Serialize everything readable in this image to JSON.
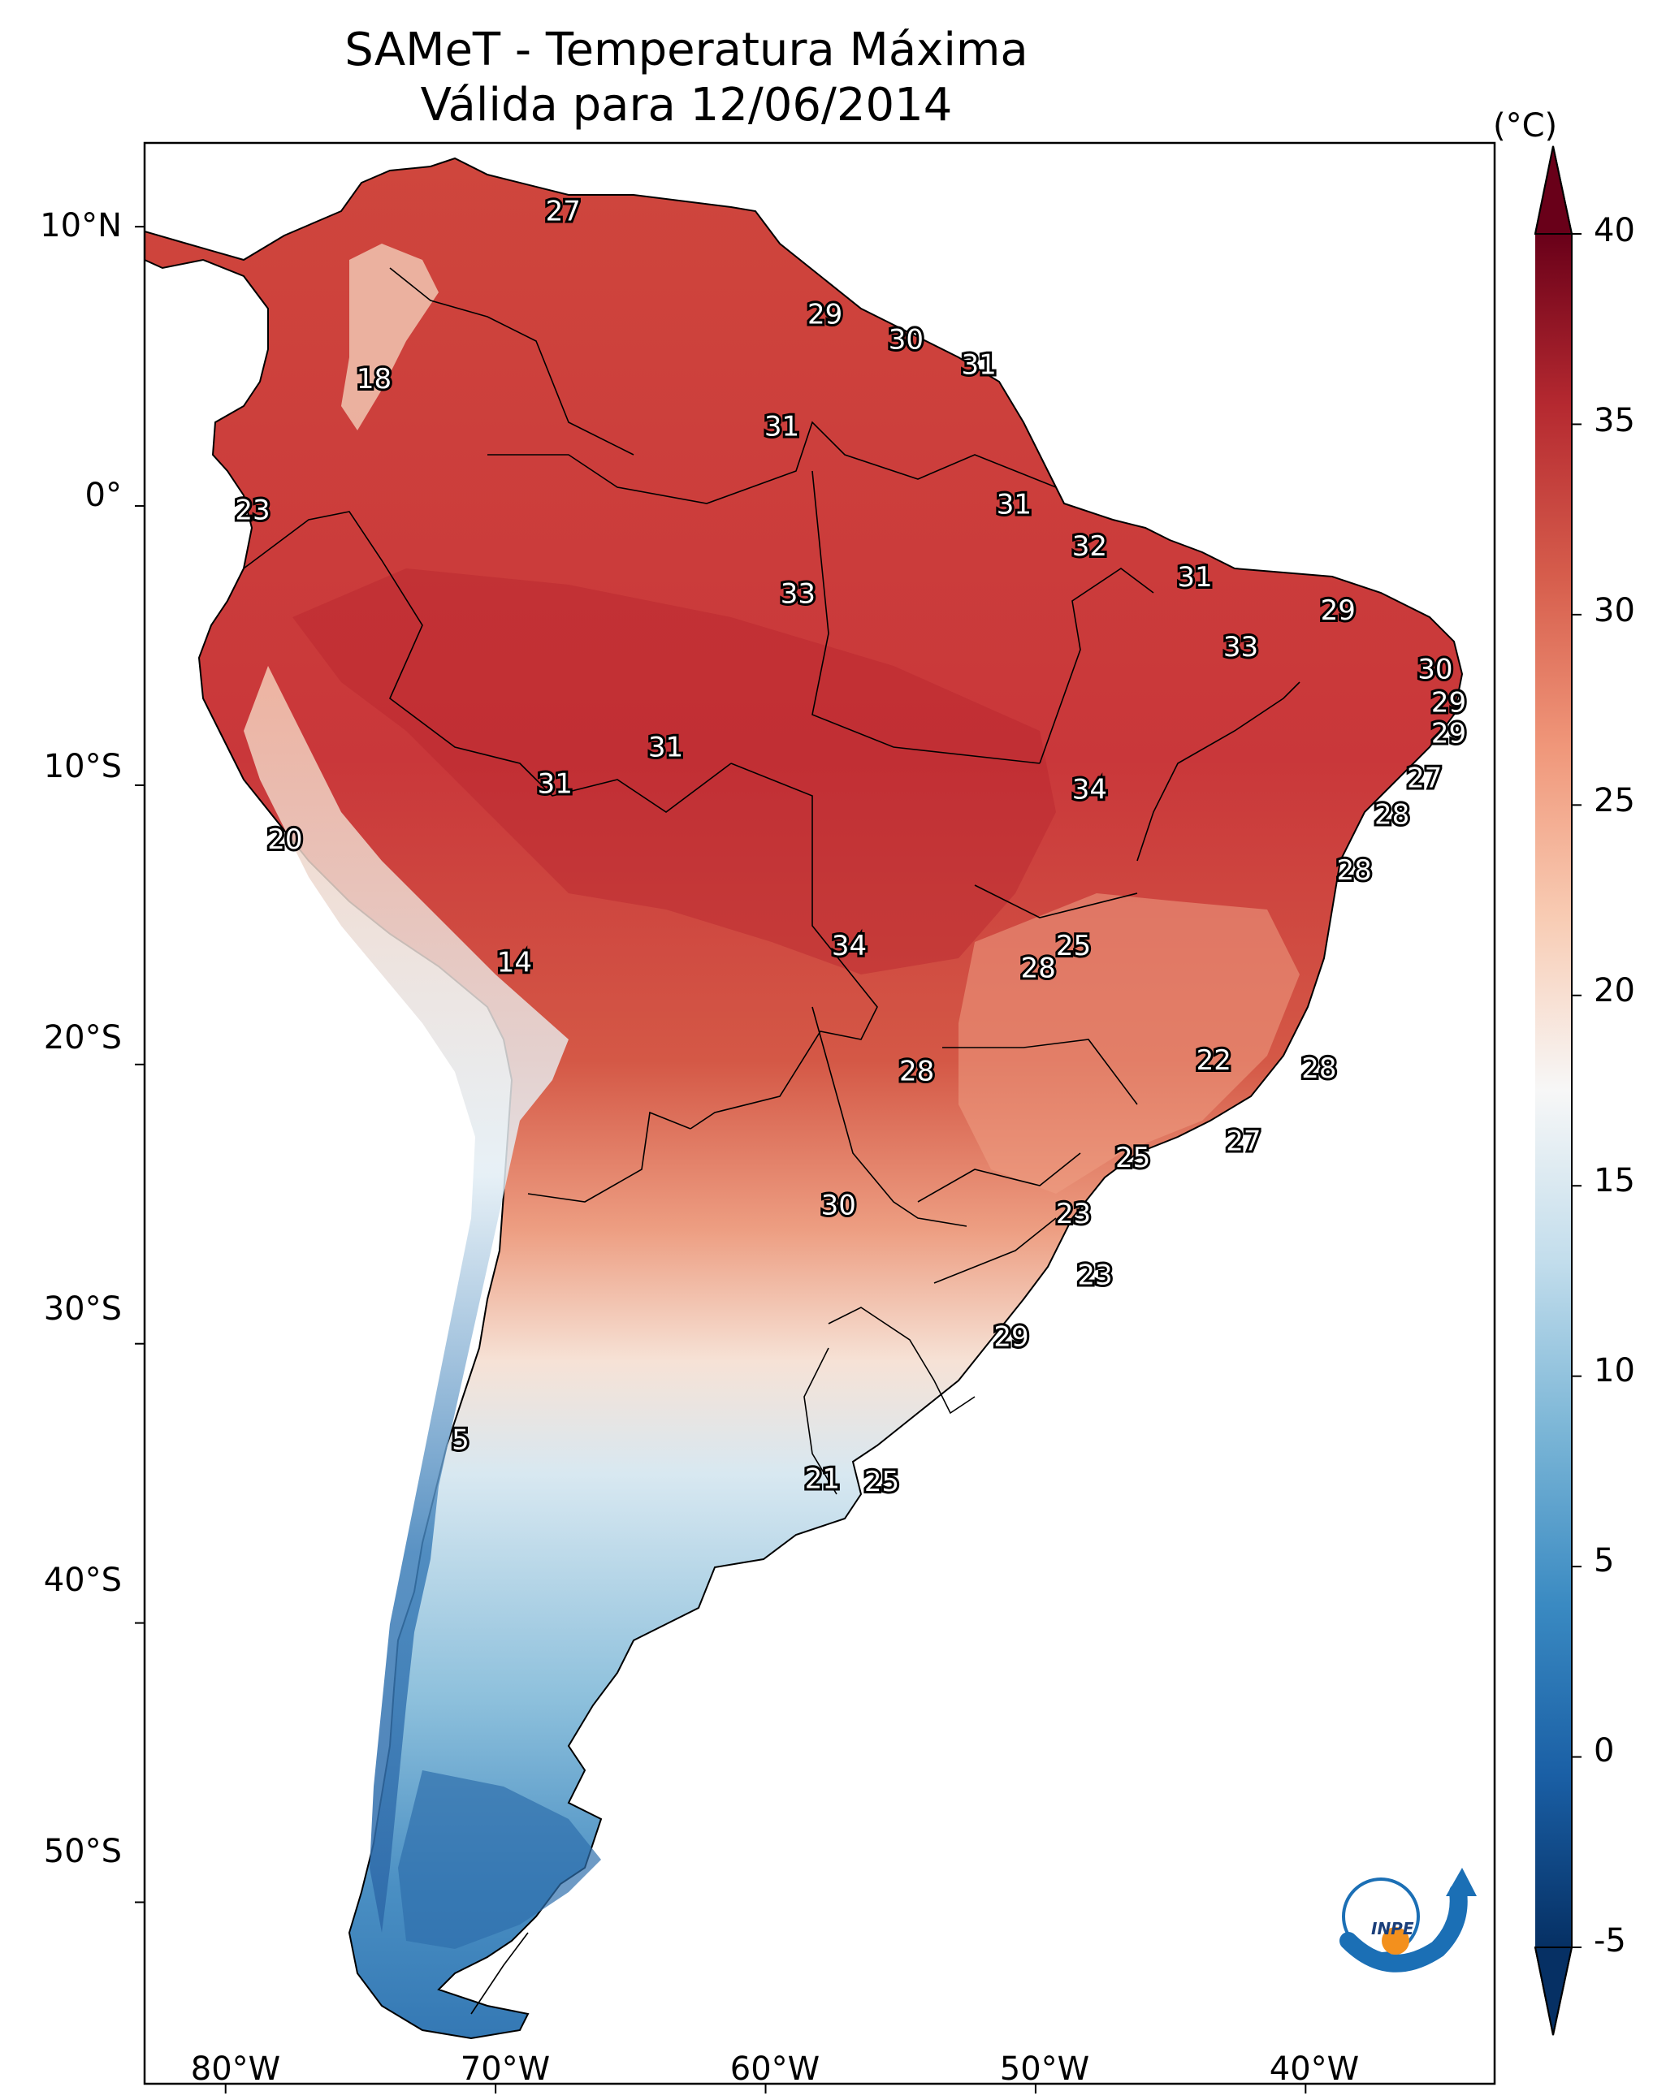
{
  "title_line1": "SAMeT - Temperatura Máxima",
  "title_line2": "Válida para 12/06/2014",
  "colorbar": {
    "unit": "(°C)",
    "ticks": [
      "40",
      "35",
      "30",
      "25",
      "20",
      "15",
      "10",
      "5",
      "0",
      "-5"
    ],
    "range": [
      -5,
      40
    ],
    "colormap": "RdBu_r"
  },
  "lat_ticks": [
    "10°N",
    "0°",
    "10°S",
    "20°S",
    "30°S",
    "40°S",
    "50°S"
  ],
  "lon_ticks": [
    "80°W",
    "70°W",
    "60°W",
    "50°W",
    "40°W"
  ],
  "map_extent": {
    "lon": [
      -83,
      -33
    ],
    "lat": [
      -56.5,
      13
    ]
  },
  "logo": {
    "text": "INPE"
  },
  "temperature_labels": [
    {
      "lon": -67.5,
      "lat": 10.5,
      "value": "27"
    },
    {
      "lon": -74.5,
      "lat": 4.5,
      "value": "18"
    },
    {
      "lon": -79.0,
      "lat": -0.2,
      "value": "23"
    },
    {
      "lon": -57.8,
      "lat": 6.8,
      "value": "29"
    },
    {
      "lon": -54.8,
      "lat": 5.9,
      "value": "30"
    },
    {
      "lon": -52.1,
      "lat": 5.0,
      "value": "31"
    },
    {
      "lon": -59.4,
      "lat": 2.8,
      "value": "31"
    },
    {
      "lon": -50.8,
      "lat": 0.0,
      "value": "31"
    },
    {
      "lon": -48.0,
      "lat": -1.5,
      "value": "32"
    },
    {
      "lon": -44.1,
      "lat": -2.6,
      "value": "31"
    },
    {
      "lon": -38.8,
      "lat": -3.8,
      "value": "29"
    },
    {
      "lon": -58.8,
      "lat": -3.2,
      "value": "33"
    },
    {
      "lon": -42.4,
      "lat": -5.1,
      "value": "33"
    },
    {
      "lon": -35.2,
      "lat": -5.9,
      "value": "30"
    },
    {
      "lon": -34.7,
      "lat": -7.1,
      "value": "29"
    },
    {
      "lon": -34.7,
      "lat": -8.2,
      "value": "29"
    },
    {
      "lon": -35.6,
      "lat": -9.8,
      "value": "27"
    },
    {
      "lon": -36.8,
      "lat": -11.1,
      "value": "28"
    },
    {
      "lon": -38.2,
      "lat": -13.1,
      "value": "28"
    },
    {
      "lon": -63.7,
      "lat": -8.7,
      "value": "31"
    },
    {
      "lon": -67.8,
      "lat": -10.0,
      "value": "31"
    },
    {
      "lon": -48.0,
      "lat": -10.2,
      "value": "34"
    },
    {
      "lon": -77.8,
      "lat": -12.0,
      "value": "20"
    },
    {
      "lon": -69.3,
      "lat": -16.4,
      "value": "14"
    },
    {
      "lon": -56.9,
      "lat": -15.8,
      "value": "34"
    },
    {
      "lon": -48.6,
      "lat": -15.8,
      "value": "25"
    },
    {
      "lon": -49.9,
      "lat": -16.6,
      "value": "28"
    },
    {
      "lon": -54.4,
      "lat": -20.3,
      "value": "28"
    },
    {
      "lon": -43.4,
      "lat": -19.9,
      "value": "22"
    },
    {
      "lon": -39.5,
      "lat": -20.2,
      "value": "28"
    },
    {
      "lon": -42.3,
      "lat": -22.8,
      "value": "27"
    },
    {
      "lon": -46.4,
      "lat": -23.4,
      "value": "25"
    },
    {
      "lon": -57.3,
      "lat": -25.1,
      "value": "30"
    },
    {
      "lon": -48.6,
      "lat": -25.4,
      "value": "23"
    },
    {
      "lon": -47.8,
      "lat": -27.6,
      "value": "23"
    },
    {
      "lon": -50.9,
      "lat": -29.8,
      "value": "29"
    },
    {
      "lon": -71.3,
      "lat": -33.5,
      "value": "5"
    },
    {
      "lon": -57.9,
      "lat": -34.9,
      "value": "21"
    },
    {
      "lon": -55.7,
      "lat": -35.0,
      "value": "25"
    }
  ]
}
